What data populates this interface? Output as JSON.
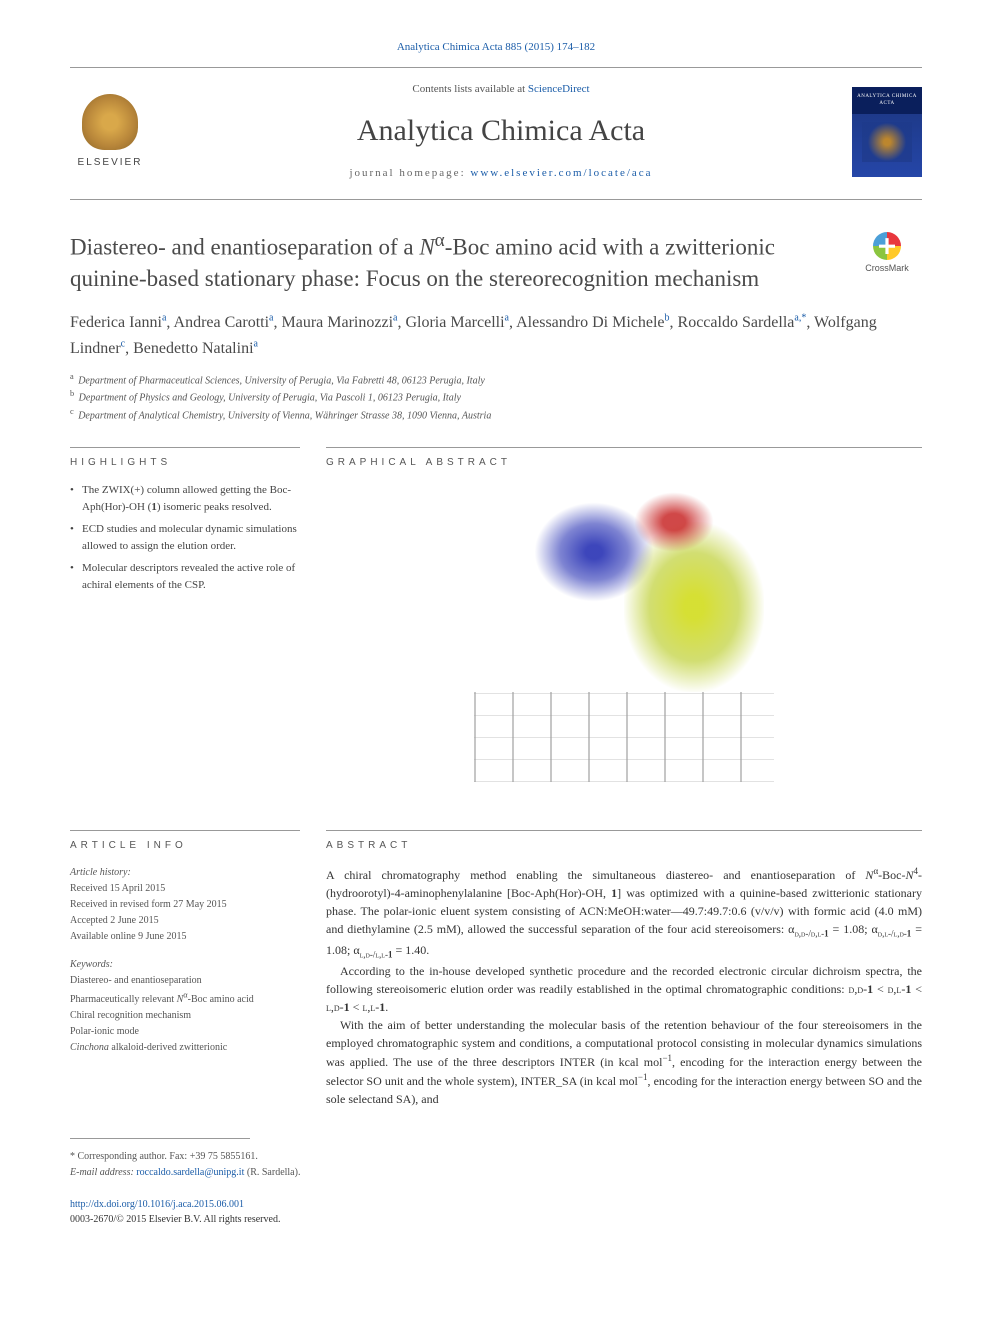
{
  "journal_ref_top": "Analytica Chimica Acta 885 (2015) 174–182",
  "header": {
    "contents_prefix": "Contents lists available at ",
    "contents_link": "ScienceDirect",
    "journal_name": "Analytica Chimica Acta",
    "homepage_prefix": "journal homepage: ",
    "homepage_link": "www.elsevier.com/locate/aca",
    "elsevier_label": "ELSEVIER",
    "cover_band": "ANALYTICA CHIMICA ACTA"
  },
  "crossmark_label": "CrossMark",
  "title_html": "Diastereo- and enantioseparation of a <i>N</i><sup>α</sup>-Boc amino acid with a zwitterionic quinine-based stationary phase: Focus on the stereorecognition mechanism",
  "authors_html": "Federica Ianni<sup>a</sup>, Andrea Carotti<sup>a</sup>, Maura Marinozzi<sup>a</sup>, Gloria Marcelli<sup>a</sup>, Alessandro Di Michele<sup>b</sup>, Roccaldo Sardella<sup>a,*</sup>, Wolfgang Lindner<sup>c</sup>, Benedetto Natalini<sup>a</sup>",
  "affiliations": [
    {
      "sup": "a",
      "text": "Department of Pharmaceutical Sciences, University of Perugia, Via Fabretti 48, 06123 Perugia, Italy"
    },
    {
      "sup": "b",
      "text": "Department of Physics and Geology, University of Perugia, Via Pascoli 1, 06123 Perugia, Italy"
    },
    {
      "sup": "c",
      "text": "Department of Analytical Chemistry, University of Vienna, Währinger Strasse 38, 1090 Vienna, Austria"
    }
  ],
  "sections": {
    "highlights": "HIGHLIGHTS",
    "graphical": "GRAPHICAL ABSTRACT",
    "article_info": "ARTICLE INFO",
    "abstract": "ABSTRACT"
  },
  "highlights": [
    "The ZWIX(+) column allowed getting the Boc-Aph(Hor)-OH (1) isomeric peaks resolved.",
    "ECD studies and molecular dynamic simulations allowed to assign the elution order.",
    "Molecular descriptors revealed the active role of achiral elements of the CSP."
  ],
  "graphical_abstract": {
    "colors": {
      "selectand": "#2a32b4",
      "selector": "#d2dc1e",
      "oxygen": "#c82828",
      "lattice": "#a0a0a0",
      "background": "#ffffff"
    }
  },
  "article_info": {
    "history_head": "Article history:",
    "received": "Received 15 April 2015",
    "revised": "Received in revised form 27 May 2015",
    "accepted": "Accepted 2 June 2015",
    "online": "Available online 9 June 2015",
    "keywords_head": "Keywords:",
    "keywords_html": "Diastereo- and enantioseparation<br>Pharmaceutically relevant <i>N</i><sup>α</sup>-Boc amino acid<br>Chiral recognition mechanism<br>Polar-ionic mode<br><i>Cinchona</i> alkaloid-derived zwitterionic"
  },
  "abstract_paragraphs_html": [
    "A chiral chromatography method enabling the simultaneous diastereo- and enantioseparation of <i>N</i><sup>α</sup>-Boc-<i>N</i><sup>4</sup>-(hydroorotyl)-4-aminophenylalanine [Boc-Aph(Hor)-OH, <b>1</b>] was optimized with a quinine-based zwitterionic stationary phase. The polar-ionic eluent system consisting of ACN:MeOH:water—49.7:49.7:0.6 (v/v/v) with formic acid (4.0 mM) and diethylamine (2.5 mM), allowed the successful separation of the four acid stereoisomers: α<sub><span class='sc'>d,d-/d,l</span>-<b>1</b></sub> = 1.08; α<sub><span class='sc'>d,l-/l,d</span>-<b>1</b></sub> = 1.08; α<sub><span class='sc'>l,d-/l,l</span>-<b>1</b></sub> = 1.40.",
    "According to the in-house developed synthetic procedure and the recorded electronic circular dichroism spectra, the following stereoisomeric elution order was readily established in the optimal chromatographic conditions: <span class='sc'>d,d</span>-<b>1</b> &lt; <span class='sc'>d,l</span>-<b>1</b> &lt; <span class='sc'>l,d</span>-<b>1</b> &lt; <span class='sc'>l,l</span>-<b>1</b>.",
    "With the aim of better understanding the molecular basis of the retention behaviour of the four stereoisomers in the employed chromatographic system and conditions, a computational protocol consisting in molecular dynamics simulations was applied. The use of the three descriptors INTER (in kcal mol<sup>−1</sup>, encoding for the interaction energy between the selector SO unit and the whole system), INTER_SA (in kcal mol<sup>−1</sup>, encoding for the interaction energy between SO and the sole selectand SA), and"
  ],
  "footer": {
    "corr_label": "* Corresponding author. Fax: +39 75 5855161.",
    "email_label": "E-mail address: ",
    "email": "roccaldo.sardella@unipg.it",
    "email_suffix": " (R. Sardella).",
    "doi": "http://dx.doi.org/10.1016/j.aca.2015.06.001",
    "copyright": "0003-2670/© 2015 Elsevier B.V. All rights reserved."
  },
  "colors": {
    "link": "#1a5ca8",
    "text": "#333333",
    "heading": "#4a4a4a",
    "rule": "#999999"
  },
  "typography": {
    "body_pt": 9,
    "title_pt": 17,
    "journal_pt": 22,
    "authors_pt": 12,
    "section_head_pt": 8,
    "affil_pt": 7.5
  }
}
